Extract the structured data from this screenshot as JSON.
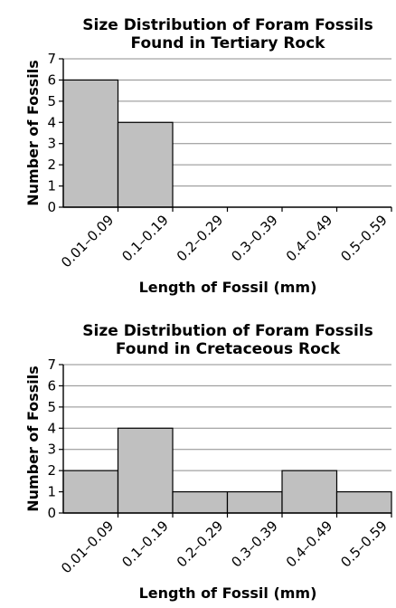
{
  "chart_data": [
    {
      "type": "bar",
      "title": [
        "Size Distribution of Foram Fossils",
        "Found in Tertiary Rock"
      ],
      "xlabel": "Length of Fossil (mm)",
      "ylabel": "Number of Fossils",
      "categories": [
        "0.01–0.09",
        "0.1–0.19",
        "0.2–0.29",
        "0.3–0.39",
        "0.4–0.49",
        "0.5–0.59"
      ],
      "values": [
        6,
        4,
        0,
        0,
        0,
        0
      ],
      "ylim": [
        0,
        7
      ],
      "yticks": [
        "0",
        "1",
        "2",
        "3",
        "4",
        "5",
        "6",
        "7"
      ],
      "grid": true,
      "bar_color": "#c0c0c0"
    },
    {
      "type": "bar",
      "title": [
        "Size Distribution of Foram Fossils",
        "Found in Cretaceous Rock"
      ],
      "xlabel": "Length of Fossil (mm)",
      "ylabel": "Number of Fossils",
      "categories": [
        "0.01–0.09",
        "0.1–0.19",
        "0.2–0.29",
        "0.3–0.39",
        "0.4–0.49",
        "0.5–0.59"
      ],
      "values": [
        2,
        4,
        1,
        1,
        2,
        1
      ],
      "ylim": [
        0,
        7
      ],
      "yticks": [
        "0",
        "1",
        "2",
        "3",
        "4",
        "5",
        "6",
        "7"
      ],
      "grid": true,
      "bar_color": "#c0c0c0"
    }
  ]
}
